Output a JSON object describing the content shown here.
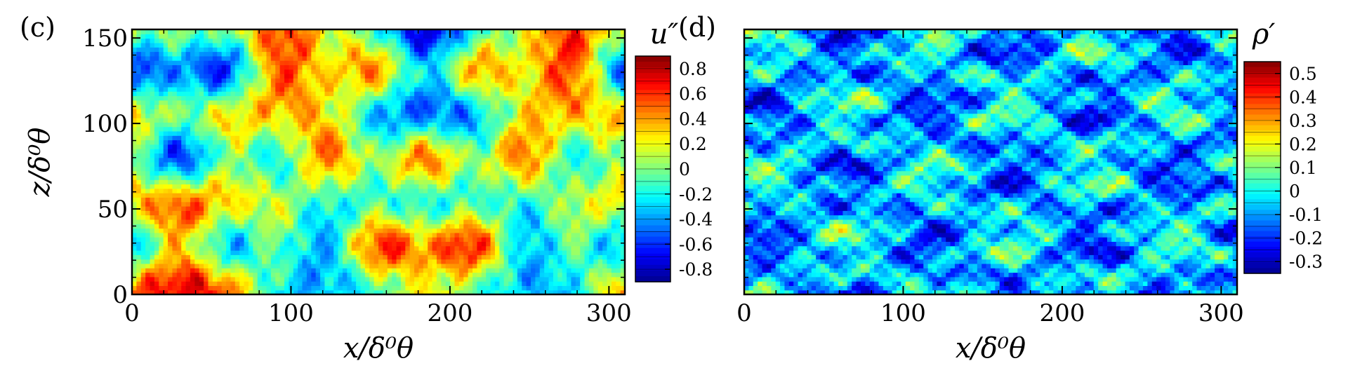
{
  "chart_data": [
    {
      "panel": "(c)",
      "type": "heatmap",
      "xlabel": "x/δ⁰θ",
      "ylabel": "z/δ⁰θ",
      "xlim": [
        0,
        310
      ],
      "ylim": [
        0,
        155
      ],
      "xticks": [
        0,
        100,
        200,
        300
      ],
      "yticks": [
        0,
        50,
        100,
        150
      ],
      "colorbar": {
        "label": "u″",
        "range": [
          -0.9,
          0.9
        ],
        "ticks": [
          "0.8",
          "0.6",
          "0.4",
          "0.2",
          "0",
          "-0.2",
          "-0.4",
          "-0.6",
          "-0.8"
        ],
        "tick_values": [
          0.8,
          0.6,
          0.4,
          0.2,
          0,
          -0.2,
          -0.4,
          -0.6,
          -0.8
        ]
      },
      "field": {
        "bias": 0.05,
        "amplitude": 0.55,
        "modes": [
          {
            "kx": 2.0,
            "kz": 0.5,
            "phase": 0.3,
            "amp": 0.9
          },
          {
            "kx": 5.0,
            "kz": 1.5,
            "phase": 1.7,
            "amp": 0.5
          },
          {
            "kx": 11.0,
            "kz": 4.0,
            "phase": 2.2,
            "amp": 0.3
          },
          {
            "kx": 19.0,
            "kz": 7.0,
            "phase": 0.9,
            "amp": 0.2
          },
          {
            "kx": 1.0,
            "kz": 3.0,
            "phase": 4.1,
            "amp": 0.6
          },
          {
            "kx": 31.0,
            "kz": 11.0,
            "phase": 5.3,
            "amp": 0.12
          }
        ]
      }
    },
    {
      "panel": "(d)",
      "type": "heatmap",
      "xlabel": "x/δ⁰θ",
      "ylabel": "",
      "xlim": [
        0,
        310
      ],
      "ylim": [
        0,
        155
      ],
      "xticks": [
        0,
        100,
        200,
        300
      ],
      "yticks": [],
      "colorbar": {
        "label": "ρ′",
        "range": [
          -0.35,
          0.55
        ],
        "ticks": [
          "0.5",
          "0.4",
          "0.3",
          "0.2",
          "0.1",
          "0",
          "-0.1",
          "-0.2",
          "-0.3"
        ],
        "tick_values": [
          0.5,
          0.4,
          0.3,
          0.2,
          0.1,
          0,
          -0.1,
          -0.2,
          -0.3
        ]
      },
      "field": {
        "bias": -0.08,
        "amplitude": 0.22,
        "modes": [
          {
            "kx": 3.0,
            "kz": 2.0,
            "phase": 0.8,
            "amp": 0.6
          },
          {
            "kx": 7.0,
            "kz": 5.0,
            "phase": 2.9,
            "amp": 0.5
          },
          {
            "kx": 13.0,
            "kz": 9.0,
            "phase": 1.1,
            "amp": 0.4
          },
          {
            "kx": 23.0,
            "kz": 15.0,
            "phase": 3.7,
            "amp": 0.3
          },
          {
            "kx": 2.0,
            "kz": 6.0,
            "phase": 5.0,
            "amp": 0.4
          },
          {
            "kx": 37.0,
            "kz": 21.0,
            "phase": 0.4,
            "amp": 0.15
          }
        ]
      }
    }
  ],
  "colormap": [
    "#00008f",
    "#0000ff",
    "#0080ff",
    "#00ffff",
    "#80ff80",
    "#ffff00",
    "#ff8000",
    "#ff0000",
    "#800000"
  ]
}
